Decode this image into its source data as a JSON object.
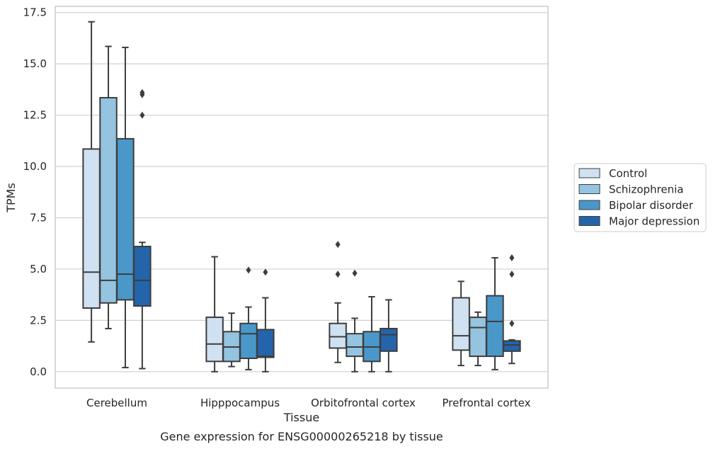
{
  "chart_data": {
    "type": "box",
    "caption": "Gene expression for ENSG00000265218 by tissue",
    "xlabel": "Tissue",
    "ylabel": "TPMs",
    "ylim": [
      -0.8,
      17.8
    ],
    "yticks": [
      0.0,
      2.5,
      5.0,
      7.5,
      10.0,
      12.5,
      15.0,
      17.5
    ],
    "ytick_labels": [
      "0.0",
      "2.5",
      "5.0",
      "7.5",
      "10.0",
      "12.5",
      "15.0",
      "17.5"
    ],
    "grid": "horizontal",
    "legend_position": "right",
    "categories": [
      "Cerebellum",
      "Hipppocampus",
      "Orbitofrontal cortex",
      "Prefrontal cortex"
    ],
    "series": [
      {
        "name": "Control",
        "color": "#d0e1f2",
        "boxes": [
          {
            "whisker_low": 1.45,
            "q1": 3.1,
            "median": 4.85,
            "q3": 10.85,
            "whisker_high": 17.05,
            "outliers": []
          },
          {
            "whisker_low": 0.0,
            "q1": 0.5,
            "median": 1.35,
            "q3": 2.65,
            "whisker_high": 5.6,
            "outliers": []
          },
          {
            "whisker_low": 0.45,
            "q1": 1.15,
            "median": 1.7,
            "q3": 2.35,
            "whisker_high": 3.35,
            "outliers": [
              4.75,
              6.2
            ]
          },
          {
            "whisker_low": 0.3,
            "q1": 1.05,
            "median": 1.75,
            "q3": 3.6,
            "whisker_high": 4.4,
            "outliers": []
          }
        ]
      },
      {
        "name": "Schizophrenia",
        "color": "#94c4df",
        "boxes": [
          {
            "whisker_low": 2.1,
            "q1": 3.35,
            "median": 4.45,
            "q3": 13.35,
            "whisker_high": 15.85,
            "outliers": []
          },
          {
            "whisker_low": 0.25,
            "q1": 0.5,
            "median": 1.2,
            "q3": 1.95,
            "whisker_high": 2.85,
            "outliers": []
          },
          {
            "whisker_low": 0.0,
            "q1": 0.75,
            "median": 1.2,
            "q3": 1.85,
            "whisker_high": 2.6,
            "outliers": [
              4.8
            ]
          },
          {
            "whisker_low": 0.3,
            "q1": 0.75,
            "median": 2.15,
            "q3": 2.65,
            "whisker_high": 2.9,
            "outliers": []
          }
        ]
      },
      {
        "name": "Bipolar disorder",
        "color": "#4a98c9",
        "boxes": [
          {
            "whisker_low": 0.2,
            "q1": 3.5,
            "median": 4.75,
            "q3": 11.35,
            "whisker_high": 15.8,
            "outliers": []
          },
          {
            "whisker_low": 0.1,
            "q1": 0.65,
            "median": 1.85,
            "q3": 2.35,
            "whisker_high": 3.15,
            "outliers": [
              4.95
            ]
          },
          {
            "whisker_low": 0.0,
            "q1": 0.5,
            "median": 1.2,
            "q3": 1.95,
            "whisker_high": 3.65,
            "outliers": []
          },
          {
            "whisker_low": 0.1,
            "q1": 0.75,
            "median": 2.45,
            "q3": 3.7,
            "whisker_high": 5.55,
            "outliers": []
          }
        ]
      },
      {
        "name": "Major depression",
        "color": "#2464ab",
        "boxes": [
          {
            "whisker_low": 0.15,
            "q1": 3.2,
            "median": 4.45,
            "q3": 6.1,
            "whisker_high": 6.3,
            "outliers": [
              12.5,
              13.5,
              13.6
            ]
          },
          {
            "whisker_low": 0.0,
            "q1": 0.7,
            "median": 0.75,
            "q3": 2.05,
            "whisker_high": 3.6,
            "outliers": [
              4.85
            ]
          },
          {
            "whisker_low": 0.0,
            "q1": 1.0,
            "median": 1.8,
            "q3": 2.1,
            "whisker_high": 3.5,
            "outliers": []
          },
          {
            "whisker_low": 0.4,
            "q1": 1.0,
            "median": 1.3,
            "q3": 1.5,
            "whisker_high": 1.55,
            "outliers": [
              2.35,
              4.75,
              5.55
            ]
          }
        ]
      }
    ]
  }
}
